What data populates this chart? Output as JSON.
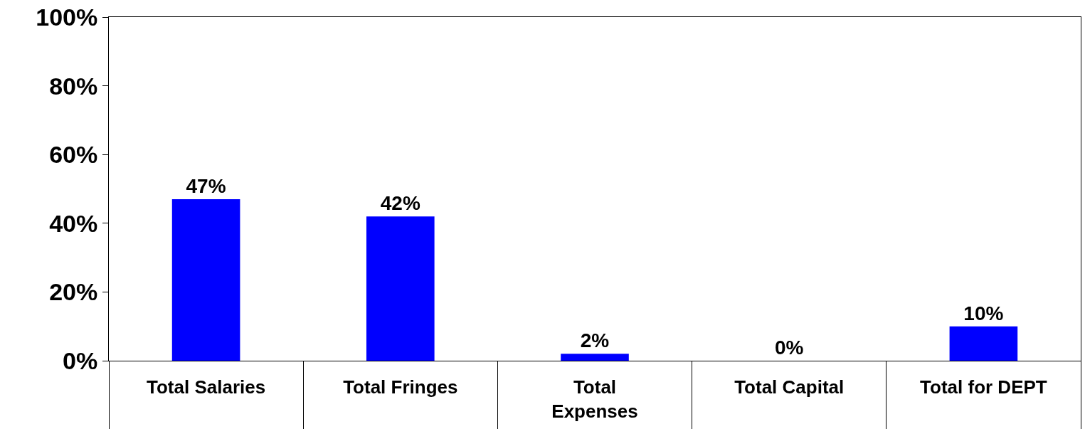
{
  "chart_data": {
    "type": "bar",
    "categories": [
      "Total Salaries",
      "Total Fringes",
      "Total\nExpenses",
      "Total Capital",
      "Total for DEPT"
    ],
    "values": [
      47,
      42,
      2,
      0,
      10
    ],
    "value_labels": [
      "47%",
      "42%",
      "2%",
      "0%",
      "10%"
    ],
    "color": "#0000ff",
    "ylim": [
      0,
      100
    ],
    "yticks": [
      {
        "value": 0,
        "label": "0%"
      },
      {
        "value": 20,
        "label": "20%"
      },
      {
        "value": 40,
        "label": "40%"
      },
      {
        "value": 60,
        "label": "60%"
      },
      {
        "value": 80,
        "label": "80%"
      },
      {
        "value": 100,
        "label": "100%"
      }
    ],
    "legend": false
  }
}
